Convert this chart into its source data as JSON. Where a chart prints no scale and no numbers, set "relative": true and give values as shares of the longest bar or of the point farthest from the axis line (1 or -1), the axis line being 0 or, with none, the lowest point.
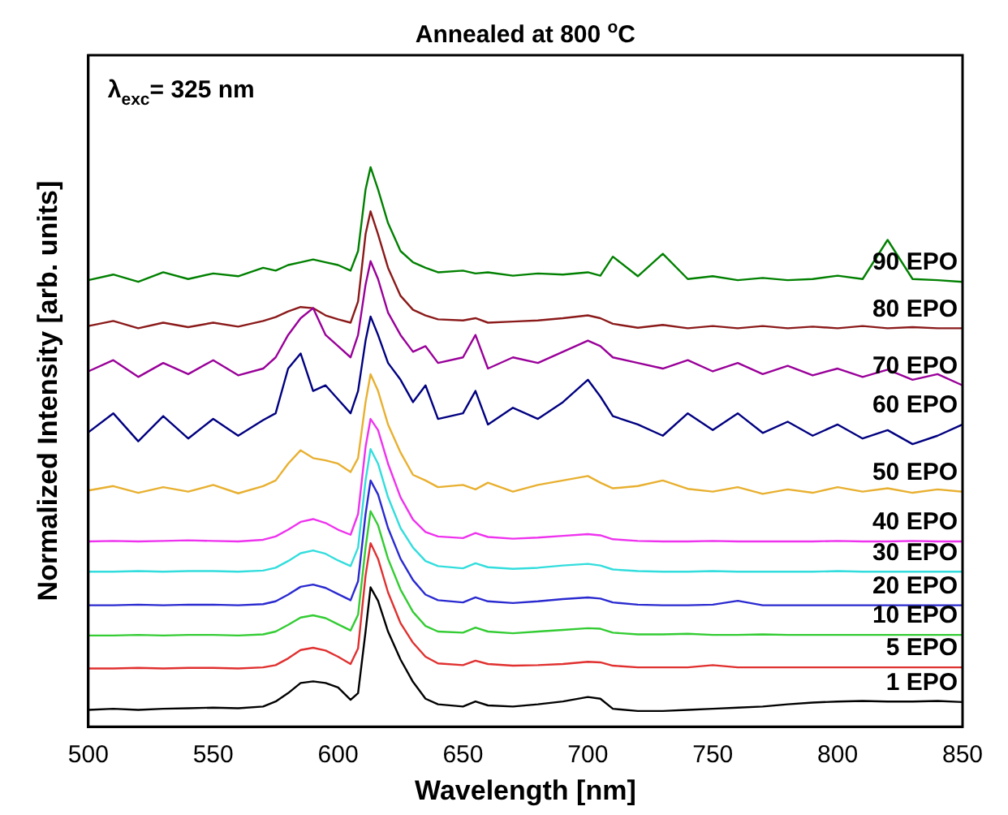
{
  "chart_data": {
    "type": "line",
    "title": "Annealed at 800 $^{o}$C",
    "xlabel": "Wavelength [nm]",
    "ylabel": "Normalized Intensity [arb. units]",
    "relative": true,
    "legend": false,
    "marker": "none",
    "line_style": "solid",
    "annotations": [
      "λ$_{exc}$= 325 nm"
    ],
    "xlim": [
      500,
      850
    ],
    "xticks": [
      500,
      550,
      600,
      650,
      700,
      750,
      800,
      850
    ],
    "x": [
      500,
      510,
      520,
      530,
      540,
      550,
      560,
      570,
      575,
      580,
      585,
      590,
      595,
      600,
      605,
      608,
      611,
      613,
      616,
      620,
      625,
      630,
      635,
      640,
      650,
      655,
      660,
      670,
      680,
      690,
      700,
      705,
      710,
      720,
      730,
      740,
      750,
      760,
      770,
      780,
      790,
      800,
      810,
      820,
      830,
      840,
      850
    ],
    "series": [
      {
        "name": "1 EPO",
        "color": "#000000",
        "values": [
          0.03,
          0.032,
          0.03,
          0.032,
          0.033,
          0.034,
          0.033,
          0.036,
          0.045,
          0.06,
          0.078,
          0.081,
          0.078,
          0.07,
          0.048,
          0.06,
          0.17,
          0.249,
          0.225,
          0.17,
          0.12,
          0.08,
          0.05,
          0.04,
          0.036,
          0.045,
          0.038,
          0.036,
          0.04,
          0.045,
          0.053,
          0.05,
          0.032,
          0.028,
          0.028,
          0.03,
          0.032,
          0.034,
          0.036,
          0.04,
          0.043,
          0.045,
          0.046,
          0.045,
          0.045,
          0.046,
          0.044
        ]
      },
      {
        "name": "5 EPO",
        "color": "#e0302f",
        "values": [
          0.104,
          0.104,
          0.105,
          0.104,
          0.105,
          0.105,
          0.104,
          0.106,
          0.11,
          0.122,
          0.137,
          0.141,
          0.136,
          0.125,
          0.112,
          0.14,
          0.27,
          0.328,
          0.3,
          0.24,
          0.185,
          0.15,
          0.125,
          0.113,
          0.11,
          0.118,
          0.112,
          0.109,
          0.11,
          0.112,
          0.116,
          0.115,
          0.109,
          0.106,
          0.106,
          0.106,
          0.11,
          0.106,
          0.106,
          0.106,
          0.106,
          0.106,
          0.106,
          0.106,
          0.106,
          0.106,
          0.106
        ]
      },
      {
        "name": "10 EPO",
        "color": "#33cc33",
        "values": [
          0.163,
          0.163,
          0.164,
          0.163,
          0.164,
          0.164,
          0.163,
          0.165,
          0.17,
          0.182,
          0.195,
          0.199,
          0.194,
          0.183,
          0.172,
          0.2,
          0.32,
          0.385,
          0.36,
          0.3,
          0.245,
          0.205,
          0.18,
          0.17,
          0.168,
          0.177,
          0.17,
          0.167,
          0.17,
          0.173,
          0.176,
          0.175,
          0.168,
          0.165,
          0.165,
          0.166,
          0.164,
          0.164,
          0.165,
          0.164,
          0.164,
          0.164,
          0.164,
          0.164,
          0.164,
          0.164,
          0.164
        ]
      },
      {
        "name": "20 EPO",
        "color": "#2a2ad0",
        "values": [
          0.217,
          0.217,
          0.218,
          0.217,
          0.218,
          0.218,
          0.217,
          0.219,
          0.224,
          0.236,
          0.25,
          0.254,
          0.248,
          0.237,
          0.226,
          0.26,
          0.38,
          0.44,
          0.415,
          0.355,
          0.3,
          0.262,
          0.236,
          0.226,
          0.222,
          0.231,
          0.224,
          0.221,
          0.224,
          0.228,
          0.231,
          0.229,
          0.222,
          0.218,
          0.217,
          0.217,
          0.218,
          0.225,
          0.217,
          0.217,
          0.217,
          0.217,
          0.217,
          0.217,
          0.217,
          0.217,
          0.217
        ]
      },
      {
        "name": "30 EPO",
        "color": "#33dddd",
        "values": [
          0.277,
          0.277,
          0.278,
          0.277,
          0.278,
          0.278,
          0.277,
          0.279,
          0.284,
          0.296,
          0.31,
          0.315,
          0.309,
          0.297,
          0.287,
          0.32,
          0.44,
          0.496,
          0.47,
          0.41,
          0.355,
          0.32,
          0.296,
          0.287,
          0.283,
          0.292,
          0.285,
          0.282,
          0.284,
          0.288,
          0.291,
          0.288,
          0.281,
          0.278,
          0.277,
          0.277,
          0.278,
          0.277,
          0.277,
          0.277,
          0.277,
          0.278,
          0.277,
          0.277,
          0.277,
          0.277,
          0.277
        ]
      },
      {
        "name": "40 EPO",
        "color": "#ee33ee",
        "values": [
          0.331,
          0.332,
          0.331,
          0.332,
          0.333,
          0.332,
          0.331,
          0.334,
          0.34,
          0.352,
          0.366,
          0.371,
          0.364,
          0.352,
          0.343,
          0.38,
          0.5,
          0.55,
          0.53,
          0.47,
          0.41,
          0.37,
          0.348,
          0.34,
          0.337,
          0.346,
          0.339,
          0.336,
          0.338,
          0.341,
          0.344,
          0.342,
          0.335,
          0.332,
          0.331,
          0.331,
          0.332,
          0.331,
          0.331,
          0.331,
          0.331,
          0.332,
          0.331,
          0.331,
          0.332,
          0.331,
          0.331
        ]
      },
      {
        "name": "50 EPO",
        "color": "#e8b030",
        "values": [
          0.422,
          0.43,
          0.418,
          0.428,
          0.42,
          0.432,
          0.417,
          0.43,
          0.44,
          0.47,
          0.494,
          0.48,
          0.476,
          0.47,
          0.455,
          0.48,
          0.58,
          0.63,
          0.6,
          0.54,
          0.49,
          0.45,
          0.44,
          0.428,
          0.432,
          0.424,
          0.436,
          0.42,
          0.432,
          0.44,
          0.448,
          0.436,
          0.426,
          0.43,
          0.44,
          0.425,
          0.42,
          0.428,
          0.416,
          0.424,
          0.418,
          0.428,
          0.42,
          0.426,
          0.418,
          0.424,
          0.42
        ]
      },
      {
        "name": "60 EPO",
        "color": "#000080",
        "values": [
          0.526,
          0.56,
          0.51,
          0.555,
          0.515,
          0.55,
          0.52,
          0.548,
          0.56,
          0.64,
          0.667,
          0.6,
          0.61,
          0.585,
          0.56,
          0.6,
          0.69,
          0.733,
          0.7,
          0.65,
          0.62,
          0.58,
          0.61,
          0.55,
          0.56,
          0.6,
          0.54,
          0.57,
          0.55,
          0.58,
          0.62,
          0.59,
          0.555,
          0.54,
          0.52,
          0.56,
          0.53,
          0.56,
          0.525,
          0.545,
          0.52,
          0.54,
          0.515,
          0.53,
          0.505,
          0.52,
          0.54
        ]
      },
      {
        "name": "70 EPO",
        "color": "#990099",
        "values": [
          0.635,
          0.655,
          0.625,
          0.65,
          0.63,
          0.655,
          0.628,
          0.64,
          0.66,
          0.7,
          0.73,
          0.748,
          0.7,
          0.68,
          0.66,
          0.7,
          0.79,
          0.832,
          0.8,
          0.74,
          0.7,
          0.67,
          0.68,
          0.65,
          0.66,
          0.7,
          0.64,
          0.66,
          0.65,
          0.67,
          0.69,
          0.68,
          0.66,
          0.65,
          0.64,
          0.655,
          0.635,
          0.65,
          0.63,
          0.645,
          0.628,
          0.64,
          0.625,
          0.638,
          0.62,
          0.63,
          0.61
        ]
      },
      {
        "name": "80 EPO",
        "color": "#8b1a1a",
        "values": [
          0.716,
          0.725,
          0.712,
          0.722,
          0.714,
          0.722,
          0.715,
          0.725,
          0.732,
          0.742,
          0.75,
          0.748,
          0.735,
          0.728,
          0.722,
          0.76,
          0.88,
          0.921,
          0.88,
          0.82,
          0.77,
          0.745,
          0.735,
          0.728,
          0.726,
          0.73,
          0.722,
          0.724,
          0.726,
          0.73,
          0.735,
          0.73,
          0.72,
          0.713,
          0.718,
          0.712,
          0.716,
          0.712,
          0.716,
          0.712,
          0.715,
          0.712,
          0.716,
          0.712,
          0.714,
          0.712,
          0.712
        ]
      },
      {
        "name": "90 EPO",
        "color": "#008000",
        "values": [
          0.798,
          0.808,
          0.795,
          0.812,
          0.8,
          0.81,
          0.805,
          0.82,
          0.815,
          0.825,
          0.83,
          0.835,
          0.83,
          0.825,
          0.815,
          0.85,
          0.96,
          1.0,
          0.96,
          0.9,
          0.85,
          0.83,
          0.82,
          0.812,
          0.815,
          0.81,
          0.812,
          0.806,
          0.81,
          0.808,
          0.812,
          0.806,
          0.84,
          0.805,
          0.845,
          0.8,
          0.805,
          0.798,
          0.802,
          0.798,
          0.8,
          0.806,
          0.8,
          0.87,
          0.8,
          0.798,
          0.795
        ]
      }
    ]
  }
}
